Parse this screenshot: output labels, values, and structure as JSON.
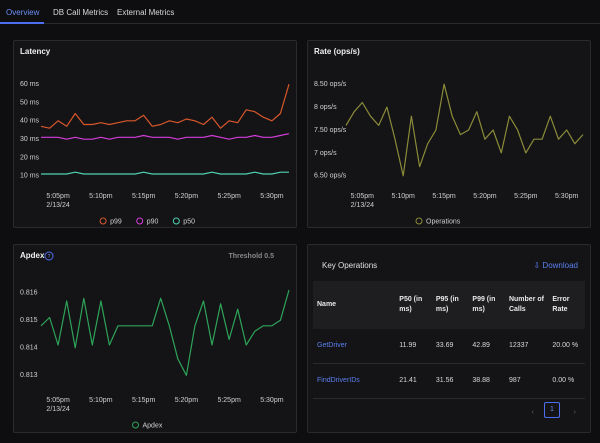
{
  "tabs": [
    "Overview",
    "DB Call Metrics",
    "External Metrics"
  ],
  "chart_data": [
    {
      "type": "line",
      "title": "Latency",
      "categories": [
        null,
        null,
        "5:05pm",
        null,
        null,
        null,
        null,
        "5:10pm",
        null,
        null,
        null,
        null,
        "5:15pm",
        null,
        null,
        null,
        null,
        "5:20pm",
        null,
        null,
        null,
        null,
        "5:25pm",
        null,
        null,
        null,
        null,
        "5:30pm",
        null,
        null
      ],
      "xdate": "2/13/24",
      "ylim": [
        5,
        65
      ],
      "yticks": [
        {
          "value": 10,
          "label": "10 ms"
        },
        {
          "value": 20,
          "label": "20 ms"
        },
        {
          "value": 30,
          "label": "30 ms"
        },
        {
          "value": 40,
          "label": "40 ms"
        },
        {
          "value": 50,
          "label": "50 ms"
        },
        {
          "value": 60,
          "label": "60 ms"
        }
      ],
      "series": [
        {
          "name": "p99",
          "color": "#d9572b",
          "values": [
            37,
            36,
            40,
            37,
            44,
            38,
            38,
            39,
            38,
            39,
            40,
            40,
            43,
            37,
            38,
            40,
            39,
            41,
            40,
            38,
            42,
            36,
            40,
            39,
            46,
            45,
            42,
            40,
            44,
            60
          ]
        },
        {
          "name": "p90",
          "color": "#d53ddb",
          "values": [
            31,
            31,
            31,
            30,
            31,
            30,
            30,
            31,
            30,
            31,
            31,
            31,
            32,
            31,
            31,
            31,
            30,
            31,
            31,
            31,
            32,
            31,
            30,
            31,
            31,
            32,
            31,
            31,
            32,
            33
          ]
        },
        {
          "name": "p50",
          "color": "#4fd1b5",
          "values": [
            11,
            11,
            11,
            11,
            12,
            11,
            11,
            11,
            11,
            11,
            11,
            11,
            12,
            11,
            11,
            11,
            11,
            11,
            11,
            11,
            12,
            11,
            11,
            11,
            11,
            12,
            11,
            11,
            12,
            12
          ]
        }
      ]
    },
    {
      "type": "line",
      "title": "Rate (ops/s)",
      "categories": [
        null,
        null,
        "5:05pm",
        null,
        null,
        null,
        null,
        "5:10pm",
        null,
        null,
        null,
        null,
        "5:15pm",
        null,
        null,
        null,
        null,
        "5:20pm",
        null,
        null,
        null,
        null,
        "5:25pm",
        null,
        null,
        null,
        null,
        "5:30pm",
        null,
        null
      ],
      "xdate": "2/13/24",
      "ylim": [
        6.3,
        8.7
      ],
      "yticks": [
        {
          "value": 6.5,
          "label": "6.50 ops/s"
        },
        {
          "value": 7,
          "label": "7 ops/s"
        },
        {
          "value": 7.5,
          "label": "7.50 ops/s"
        },
        {
          "value": 8,
          "label": "8 ops/s"
        },
        {
          "value": 8.5,
          "label": "8.50 ops/s"
        }
      ],
      "series": [
        {
          "name": "Operations",
          "color": "#8b8b3a",
          "values": [
            7.6,
            7.9,
            8.1,
            7.8,
            7.6,
            8.0,
            7.3,
            6.5,
            7.8,
            6.7,
            7.2,
            7.5,
            8.5,
            7.8,
            7.4,
            7.5,
            7.9,
            7.3,
            7.5,
            7.0,
            7.8,
            7.5,
            7.0,
            7.3,
            7.3,
            7.8,
            7.3,
            7.5,
            7.2,
            7.4
          ]
        }
      ]
    },
    {
      "type": "line",
      "title": "Apdex",
      "annotation": "Threshold 0.5",
      "categories": [
        null,
        null,
        "5:05pm",
        null,
        null,
        null,
        null,
        "5:10pm",
        null,
        null,
        null,
        null,
        "5:15pm",
        null,
        null,
        null,
        null,
        "5:20pm",
        null,
        null,
        null,
        null,
        "5:25pm",
        null,
        null,
        null,
        null,
        "5:30pm",
        null,
        null
      ],
      "xdate": "2/13/24",
      "ylim": [
        0.8125,
        0.8165
      ],
      "yticks": [
        0.813,
        0.814,
        0.815,
        0.816
      ],
      "series": [
        {
          "name": "Apdex",
          "color": "#2ea35a",
          "values": [
            0.8148,
            0.8151,
            0.8141,
            0.8157,
            0.814,
            0.8158,
            0.8141,
            0.8157,
            0.8141,
            0.8148,
            0.8148,
            0.8148,
            0.8148,
            0.8148,
            0.8158,
            0.8148,
            0.8136,
            0.813,
            0.8148,
            0.8157,
            0.8141,
            0.8156,
            0.8143,
            0.8154,
            0.8141,
            0.8146,
            0.8148,
            0.8148,
            0.815,
            0.8161
          ]
        }
      ]
    }
  ],
  "table": {
    "title": "Key Operations",
    "action": "Download",
    "columns": [
      "Name",
      "P50 (in ms)",
      "P95 (in ms)",
      "P99 (in ms)",
      "Number of Calls",
      "Error Rate"
    ],
    "rows": [
      [
        "GetDriver",
        11.99,
        33.69,
        42.89,
        12337,
        "20.00 %"
      ],
      [
        "FindDriverIDs",
        21.41,
        31.56,
        38.88,
        987,
        "0.00 %"
      ]
    ],
    "page": 1
  }
}
